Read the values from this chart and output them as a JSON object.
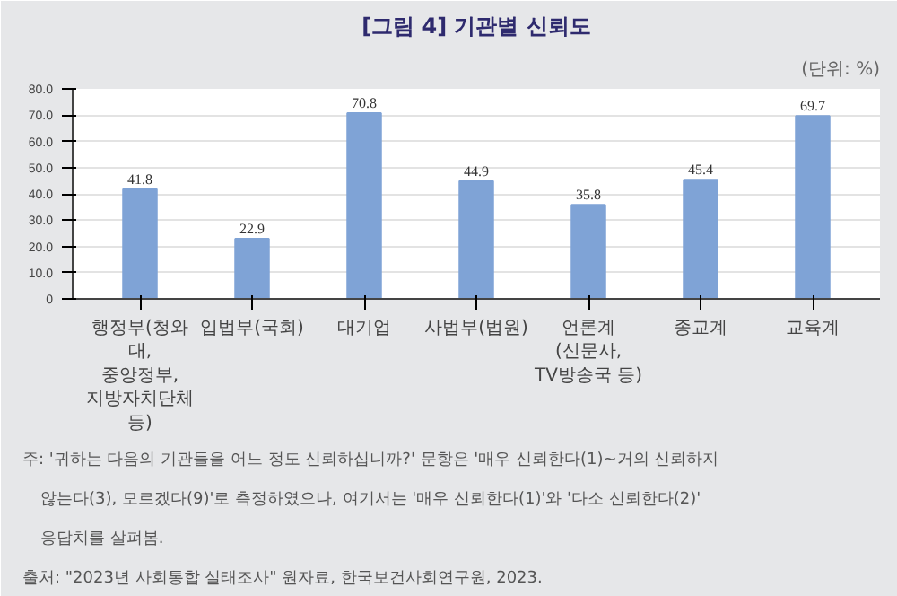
{
  "chart_data": {
    "type": "bar",
    "title": "[그림 4] 기관별 신뢰도",
    "ylabel": "(단위: %)",
    "categories": [
      "행정부(청와대, 중앙정부, 지방자치단체 등)",
      "입법부(국회)",
      "대기업",
      "사법부(법원)",
      "언론계 (신문사, TV방송국 등)",
      "종교계",
      "교육계"
    ],
    "values": [
      41.8,
      22.9,
      70.8,
      44.9,
      35.8,
      45.4,
      69.7
    ],
    "color": "#7fa3d6",
    "data_labels": true,
    "grid": "y",
    "ylim": [
      0,
      80
    ],
    "yticks": [
      0,
      {
        "value": 10,
        "label": "10.0"
      },
      {
        "value": 20,
        "label": "20.0"
      },
      {
        "value": 30,
        "label": "30.0"
      },
      {
        "value": 40,
        "label": "40.0"
      },
      {
        "value": 50,
        "label": "50.0"
      },
      {
        "value": 60,
        "label": "60.0"
      },
      {
        "value": 70,
        "label": "70.0"
      },
      {
        "value": 80,
        "label": "80.0"
      }
    ],
    "annotations": [
      "주: '귀하는 다음의 기관들을 어느 정도 신뢰하십니까?' 문항은 '매우 신뢰한다(1)~거의 신뢰하지 않는다(3), 모르겠다(9)'로 측정하였으나, 여기서는 '매우 신뢰한다(1)'와 '다소 신뢰한다(2)' 응답치를 살펴봄.",
      "출처: \"2023년 사회통합 실태조사\" 원자료, 한국보건사회연구원, 2023."
    ]
  }
}
